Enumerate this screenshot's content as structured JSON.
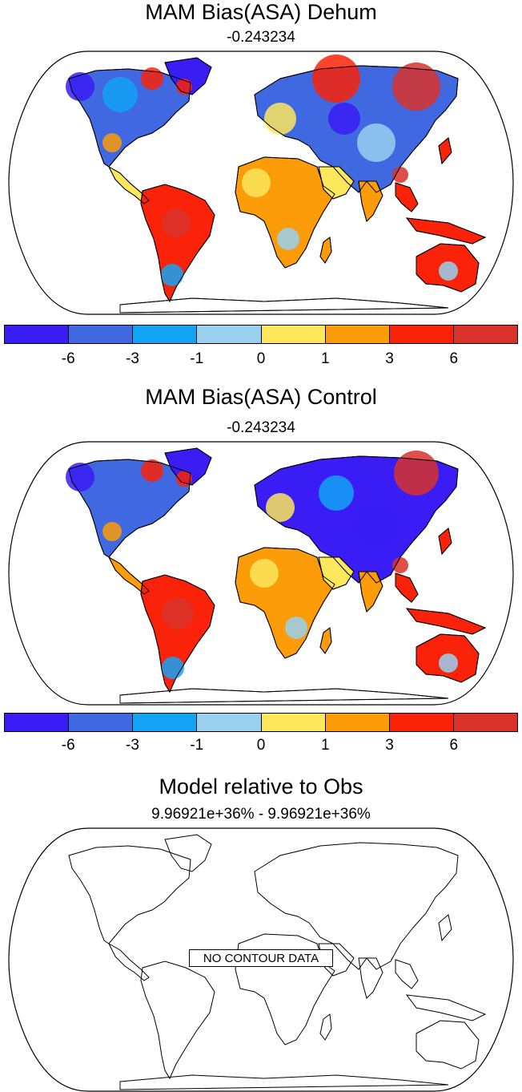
{
  "panels": [
    {
      "title": "MAM Bias(ASA) Dehum",
      "subtitle": "-0.243234"
    },
    {
      "title": "MAM Bias(ASA) Control",
      "subtitle": "-0.243234"
    },
    {
      "title": "Model relative to Obs",
      "subtitle": "9.96921e+36% - 9.96921e+36%",
      "overlay_text": "NO CONTOUR DATA"
    }
  ],
  "colorbar": {
    "labels": [
      "-6",
      "-3",
      "-1",
      "0",
      "1",
      "3",
      "6"
    ],
    "colors": [
      "#3a1cf5",
      "#4068e0",
      "#13a3f5",
      "#98d0ee",
      "#fce85a",
      "#fb9c08",
      "#fa2208",
      "#d8322a"
    ]
  },
  "chart_data": [
    {
      "type": "map",
      "title": "MAM Bias(ASA) Dehum",
      "projection": "Robinson",
      "legend": {
        "levels": [
          -6,
          -3,
          -1,
          0,
          1,
          3,
          6
        ]
      }
    },
    {
      "type": "map",
      "title": "MAM Bias(ASA) Control",
      "projection": "Robinson",
      "legend": {
        "levels": [
          -6,
          -3,
          -1,
          0,
          1,
          3,
          6
        ]
      }
    },
    {
      "type": "map",
      "title": "Model relative to Obs",
      "projection": "Robinson"
    }
  ]
}
